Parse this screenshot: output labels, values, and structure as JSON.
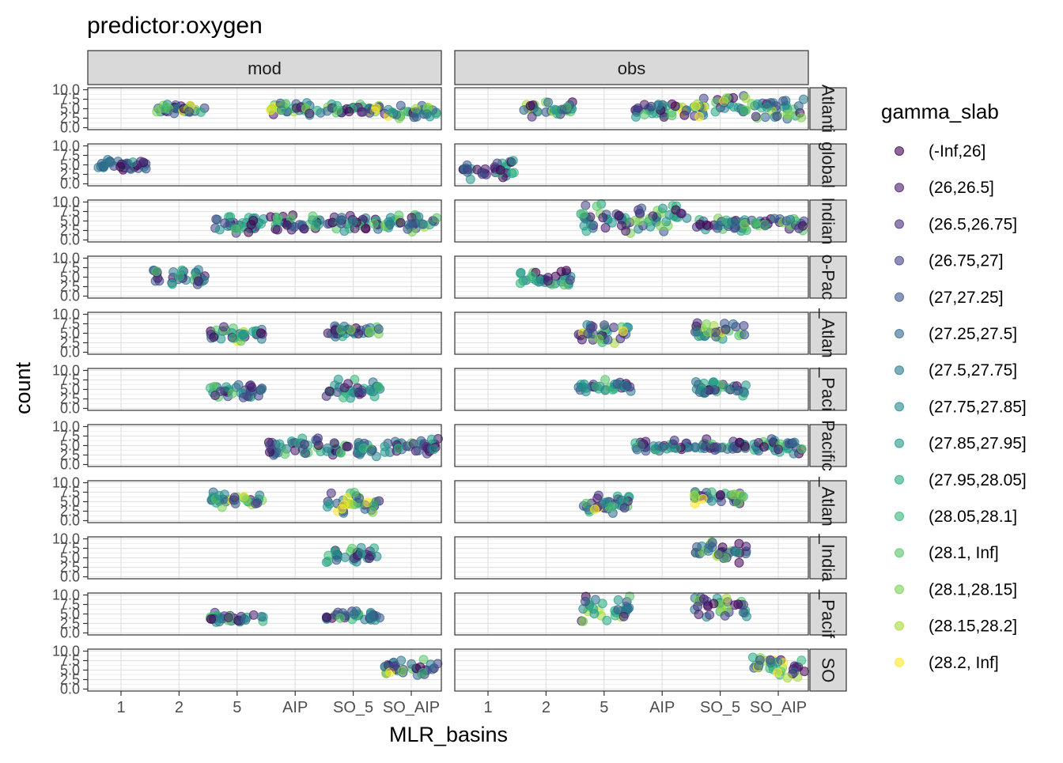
{
  "chart_data": {
    "type": "scatter",
    "title": "predictor:oxygen",
    "xlabel": "MLR_basins",
    "ylabel": "count",
    "facet_columns": [
      "mod",
      "obs"
    ],
    "facet_rows": [
      "Atlanti",
      "global",
      "Indian",
      "o-Pac",
      "_Atlan",
      "_Paci",
      "Pacific",
      "_Atlan",
      "_India",
      "_Pacif",
      "SO"
    ],
    "x_categories": [
      "1",
      "2",
      "5",
      "AIP",
      "SO_5",
      "SO_AIP"
    ],
    "y_ticks": [
      "0.0",
      "2.5",
      "5.0",
      "7.5",
      "10.0"
    ],
    "ylim": [
      0,
      10
    ],
    "grid": true,
    "legend": {
      "title": "gamma_slab",
      "position": "right",
      "labels": [
        "(-Inf,26]",
        "(26,26.5]",
        "(26.5,26.75]",
        "(26.75,27]",
        "(27,27.25]",
        "(27.25,27.5]",
        "(27.5,27.75]",
        "(27.75,27.85]",
        "(27.85,27.95]",
        "(27.95,28.05]",
        "(28.05,28.1]",
        "(28.1, Inf]",
        "(28.1,28.15]",
        "(28.15,28.2]",
        "(28.2, Inf]"
      ],
      "colors": [
        "#440154",
        "#481A6C",
        "#472F7D",
        "#414487",
        "#39568C",
        "#31688E",
        "#2A788E",
        "#23888E",
        "#1F988B",
        "#22A884",
        "#35B779",
        "#54C568",
        "#7AD151",
        "#A5DB36",
        "#FDE725"
      ]
    },
    "panels": [
      {
        "row": 0,
        "col": 0,
        "groups": [
          {
            "x": "2",
            "y": [
              3,
              6.5
            ],
            "c": [
              0,
              14
            ]
          },
          {
            "x": "AIP",
            "y": [
              3,
              7
            ],
            "c": [
              0,
              14
            ]
          },
          {
            "x": "SO_5",
            "y": [
              3.5,
              6.5
            ],
            "c": [
              0,
              14
            ]
          },
          {
            "x": "SO_AIP",
            "y": [
              2,
              6.5
            ],
            "c": [
              0,
              14
            ]
          }
        ]
      },
      {
        "row": 0,
        "col": 1,
        "groups": [
          {
            "x": "2",
            "y": [
              2.5,
              7
            ],
            "c": [
              0,
              14
            ]
          },
          {
            "x": "AIP",
            "y": [
              2.5,
              7
            ],
            "c": [
              0,
              14
            ]
          },
          {
            "x": "SO_5",
            "y": [
              2,
              9.5
            ],
            "c": [
              0,
              14
            ]
          },
          {
            "x": "SO_AIP",
            "y": [
              1.5,
              8
            ],
            "c": [
              0,
              14
            ]
          }
        ]
      },
      {
        "row": 1,
        "col": 0,
        "groups": [
          {
            "x": "1",
            "y": [
              3.5,
              6.5
            ],
            "c": [
              0,
              8
            ]
          }
        ]
      },
      {
        "row": 1,
        "col": 1,
        "groups": [
          {
            "x": "1",
            "y": [
              1,
              7
            ],
            "c": [
              0,
              10
            ]
          }
        ]
      },
      {
        "row": 2,
        "col": 0,
        "groups": [
          {
            "x": "5",
            "y": [
              1,
              7
            ],
            "c": [
              0,
              11
            ]
          },
          {
            "x": "AIP",
            "y": [
              2,
              7
            ],
            "c": [
              0,
              11
            ]
          },
          {
            "x": "SO_5",
            "y": [
              2,
              7
            ],
            "c": [
              0,
              11
            ]
          },
          {
            "x": "SO_AIP",
            "y": [
              2,
              7
            ],
            "c": [
              0,
              13
            ]
          }
        ]
      },
      {
        "row": 2,
        "col": 1,
        "groups": [
          {
            "x": "5",
            "y": [
              1,
              10
            ],
            "c": [
              0,
              13
            ]
          },
          {
            "x": "AIP",
            "y": [
              2,
              10
            ],
            "c": [
              0,
              12
            ]
          },
          {
            "x": "SO_5",
            "y": [
              2,
              6
            ],
            "c": [
              0,
              12
            ]
          },
          {
            "x": "SO_AIP",
            "y": [
              2,
              6
            ],
            "c": [
              0,
              12
            ]
          }
        ]
      },
      {
        "row": 3,
        "col": 0,
        "groups": [
          {
            "x": "2",
            "y": [
              2,
              7.5
            ],
            "c": [
              0,
              11
            ]
          }
        ]
      },
      {
        "row": 3,
        "col": 1,
        "groups": [
          {
            "x": "2",
            "y": [
              2,
              7
            ],
            "c": [
              0,
              11
            ]
          }
        ]
      },
      {
        "row": 4,
        "col": 0,
        "groups": [
          {
            "x": "5",
            "y": [
              2,
              7
            ],
            "c": [
              0,
              14
            ]
          },
          {
            "x": "SO_5",
            "y": [
              3,
              7.5
            ],
            "c": [
              0,
              12
            ]
          }
        ]
      },
      {
        "row": 4,
        "col": 1,
        "groups": [
          {
            "x": "5",
            "y": [
              2,
              8
            ],
            "c": [
              0,
              14
            ]
          },
          {
            "x": "SO_5",
            "y": [
              3,
              8
            ],
            "c": [
              0,
              14
            ]
          }
        ]
      },
      {
        "row": 5,
        "col": 0,
        "groups": [
          {
            "x": "5",
            "y": [
              2,
              7
            ],
            "c": [
              0,
              11
            ]
          },
          {
            "x": "SO_5",
            "y": [
              2,
              8
            ],
            "c": [
              0,
              10
            ]
          }
        ]
      },
      {
        "row": 5,
        "col": 1,
        "groups": [
          {
            "x": "5",
            "y": [
              3.5,
              8
            ],
            "c": [
              0,
              11
            ]
          },
          {
            "x": "SO_5",
            "y": [
              3,
              8
            ],
            "c": [
              0,
              11
            ]
          }
        ]
      },
      {
        "row": 6,
        "col": 0,
        "groups": [
          {
            "x": "AIP",
            "y": [
              2,
              7.5
            ],
            "c": [
              0,
              11
            ]
          },
          {
            "x": "SO_5",
            "y": [
              2,
              6
            ],
            "c": [
              0,
              11
            ]
          },
          {
            "x": "SO_AIP",
            "y": [
              2,
              7.5
            ],
            "c": [
              0,
              11
            ]
          }
        ]
      },
      {
        "row": 6,
        "col": 1,
        "groups": [
          {
            "x": "AIP",
            "y": [
              3,
              7
            ],
            "c": [
              0,
              11
            ]
          },
          {
            "x": "SO_5",
            "y": [
              3,
              7
            ],
            "c": [
              0,
              11
            ]
          },
          {
            "x": "SO_AIP",
            "y": [
              2,
              7
            ],
            "c": [
              0,
              11
            ]
          }
        ]
      },
      {
        "row": 7,
        "col": 0,
        "groups": [
          {
            "x": "5",
            "y": [
              3,
              8
            ],
            "c": [
              0,
              14
            ]
          },
          {
            "x": "SO_5",
            "y": [
              1,
              8
            ],
            "c": [
              0,
              14
            ]
          }
        ]
      },
      {
        "row": 7,
        "col": 1,
        "groups": [
          {
            "x": "5",
            "y": [
              1,
              8
            ],
            "c": [
              0,
              14
            ]
          },
          {
            "x": "SO_5",
            "y": [
              4,
              8.5
            ],
            "c": [
              0,
              14
            ]
          }
        ]
      },
      {
        "row": 8,
        "col": 0,
        "groups": [
          {
            "x": "SO_5",
            "y": [
              3.5,
              8
            ],
            "c": [
              0,
              11
            ]
          }
        ]
      },
      {
        "row": 8,
        "col": 1,
        "groups": [
          {
            "x": "SO_5",
            "y": [
              3,
              10
            ],
            "c": [
              0,
              13
            ]
          }
        ]
      },
      {
        "row": 9,
        "col": 0,
        "groups": [
          {
            "x": "5",
            "y": [
              2.5,
              5.5
            ],
            "c": [
              0,
              11
            ]
          },
          {
            "x": "SO_5",
            "y": [
              3,
              6
            ],
            "c": [
              0,
              11
            ]
          }
        ]
      },
      {
        "row": 9,
        "col": 1,
        "groups": [
          {
            "x": "5",
            "y": [
              2,
              10
            ],
            "c": [
              0,
              13
            ]
          },
          {
            "x": "SO_5",
            "y": [
              4,
              10
            ],
            "c": [
              0,
              13
            ]
          }
        ]
      },
      {
        "row": 10,
        "col": 0,
        "groups": [
          {
            "x": "SO_AIP",
            "y": [
              3,
              8
            ],
            "c": [
              0,
              14
            ]
          }
        ]
      },
      {
        "row": 10,
        "col": 1,
        "groups": [
          {
            "x": "SO_AIP",
            "y": [
              2,
              9
            ],
            "c": [
              0,
              14
            ]
          }
        ]
      }
    ]
  }
}
